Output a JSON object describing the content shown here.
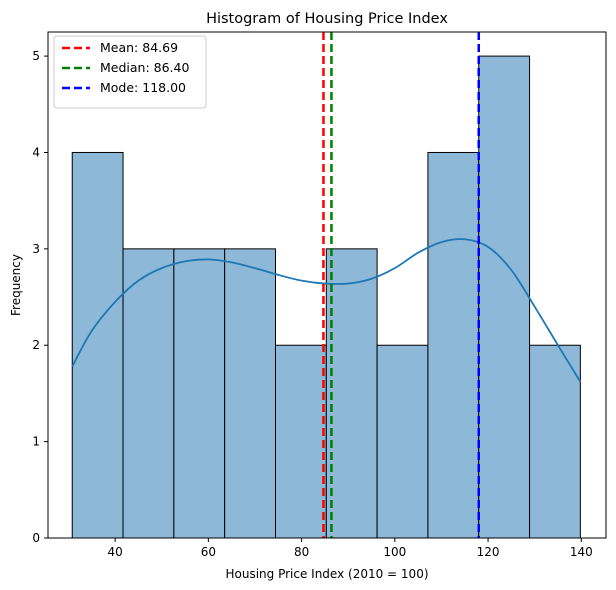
{
  "chart_data": {
    "type": "bar",
    "title": "Histogram of Housing Price Index",
    "xlabel": "Housing Price Index (2010 = 100)",
    "ylabel": "Frequency",
    "xlim": [
      25.6,
      145.3
    ],
    "ylim": [
      0,
      5.25
    ],
    "xticks": [
      40,
      60,
      80,
      100,
      120,
      140
    ],
    "yticks": [
      0,
      1,
      2,
      3,
      4,
      5
    ],
    "bin_edges": [
      30.8,
      41.7,
      52.6,
      63.5,
      74.4,
      85.3,
      96.2,
      107.1,
      118.0,
      128.9,
      139.8
    ],
    "counts": [
      4,
      3,
      3,
      3,
      2,
      3,
      2,
      4,
      5,
      2
    ],
    "bar_color": "#8db8d8",
    "bar_edge_color": "#000000",
    "kde": {
      "color": "#1f77b4",
      "x": [
        30.8,
        35,
        40,
        45,
        50,
        55,
        60,
        65,
        70,
        75,
        80,
        85,
        90,
        95,
        100,
        105,
        110,
        115,
        120,
        125,
        130,
        135,
        139.8
      ],
      "y": [
        1.78,
        2.15,
        2.45,
        2.67,
        2.8,
        2.87,
        2.89,
        2.86,
        2.8,
        2.73,
        2.67,
        2.64,
        2.64,
        2.69,
        2.8,
        2.96,
        3.07,
        3.1,
        3.02,
        2.78,
        2.4,
        2.0,
        1.62
      ]
    },
    "reference_lines": [
      {
        "label": "Mean: 84.69",
        "value": 84.69,
        "color": "#ff0000"
      },
      {
        "label": "Median: 86.40",
        "value": 86.4,
        "color": "#008000"
      },
      {
        "label": "Mode: 118.00",
        "value": 118.0,
        "color": "#0000ff"
      }
    ],
    "legend_position": "top-left",
    "grid": false
  }
}
